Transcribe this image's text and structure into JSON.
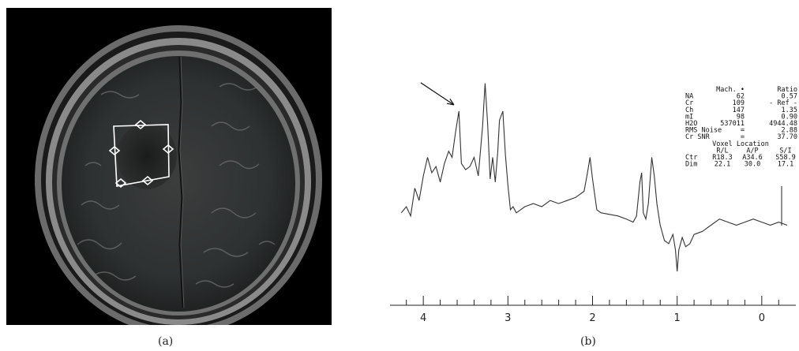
{
  "panels": {
    "a": {
      "caption": "(a)"
    },
    "b": {
      "caption": "(b)"
    }
  },
  "colors": {
    "trace": "#333333",
    "roi": "#ffffff",
    "axis": "#222222"
  },
  "spectrum_readout": {
    "header": [
      "Mach. •",
      "Ratio"
    ],
    "rows": [
      [
        "NA",
        "62",
        "0.57"
      ],
      [
        "Cr",
        "109",
        "- Ref -"
      ],
      [
        "Ch",
        "147",
        "1.35"
      ],
      [
        "mI",
        "98",
        "0.90"
      ],
      [
        "H2O",
        "537011",
        "4944.48"
      ],
      [
        "RMS Noise",
        "=",
        "2.88"
      ],
      [
        "Cr SNR",
        "=",
        "37.70"
      ]
    ],
    "voxel_title": "Voxel Location",
    "voxel_header": [
      "R/L",
      "A/P",
      "S/I"
    ],
    "voxel_rows": [
      [
        "Ctr",
        "R18.3",
        "A34.6",
        "S58.9"
      ],
      [
        "Dim",
        "22.1",
        "30.0",
        "17.1"
      ]
    ]
  },
  "chart_data": {
    "type": "line",
    "title": "",
    "xlabel": "",
    "ylabel": "",
    "x_reversed": true,
    "xlim": [
      4.3,
      -0.3
    ],
    "ylim": [
      -1.4,
      5.1
    ],
    "ticks": [
      4,
      3,
      2,
      1,
      0
    ],
    "series": [
      {
        "x": [
          4.26,
          4.2,
          4.15,
          4.1,
          4.05,
          4.0,
          3.95,
          3.9,
          3.85,
          3.8,
          3.75,
          3.7,
          3.66,
          3.62,
          3.58,
          3.55,
          3.5,
          3.45,
          3.4,
          3.35,
          3.3,
          3.27,
          3.24,
          3.21,
          3.18,
          3.15,
          3.12,
          3.1,
          3.06,
          3.03,
          3.0,
          2.97,
          2.94,
          2.9,
          2.85,
          2.8,
          2.7,
          2.6,
          2.5,
          2.4,
          2.3,
          2.2,
          2.1,
          2.06,
          2.03,
          2.0,
          1.95,
          1.9,
          1.8,
          1.7,
          1.6,
          1.52,
          1.48,
          1.44,
          1.42,
          1.4,
          1.37,
          1.34,
          1.3,
          1.27,
          1.24,
          1.2,
          1.15,
          1.1,
          1.05,
          1.02,
          1.0,
          0.98,
          0.94,
          0.9,
          0.85,
          0.8,
          0.7,
          0.6,
          0.5,
          0.4,
          0.3,
          0.2,
          0.1,
          0.0,
          -0.1,
          -0.2,
          -0.3
        ],
        "y": [
          0.6,
          0.8,
          0.5,
          1.4,
          1.0,
          1.8,
          2.4,
          1.9,
          2.1,
          1.6,
          2.2,
          2.6,
          2.4,
          3.2,
          3.9,
          2.2,
          2.0,
          2.1,
          2.4,
          1.8,
          3.4,
          4.8,
          3.5,
          1.7,
          2.4,
          1.6,
          2.6,
          3.6,
          3.9,
          2.5,
          1.5,
          0.7,
          0.8,
          0.6,
          0.7,
          0.8,
          0.9,
          0.8,
          1.0,
          0.9,
          1.0,
          1.1,
          1.3,
          1.9,
          2.4,
          1.7,
          0.7,
          0.6,
          0.55,
          0.5,
          0.4,
          0.3,
          0.5,
          1.6,
          1.9,
          0.6,
          0.4,
          0.9,
          2.4,
          1.8,
          0.9,
          0.2,
          -0.3,
          -0.4,
          -0.1,
          -0.6,
          -1.3,
          -0.6,
          -0.2,
          -0.5,
          -0.4,
          -0.1,
          0.0,
          0.2,
          0.4,
          0.3,
          0.2,
          0.3,
          0.4,
          0.3,
          0.2,
          0.3,
          0.2
        ]
      }
    ],
    "annotations": [
      {
        "type": "arrow",
        "target_x": 3.62,
        "target_y": 3.9
      }
    ]
  }
}
